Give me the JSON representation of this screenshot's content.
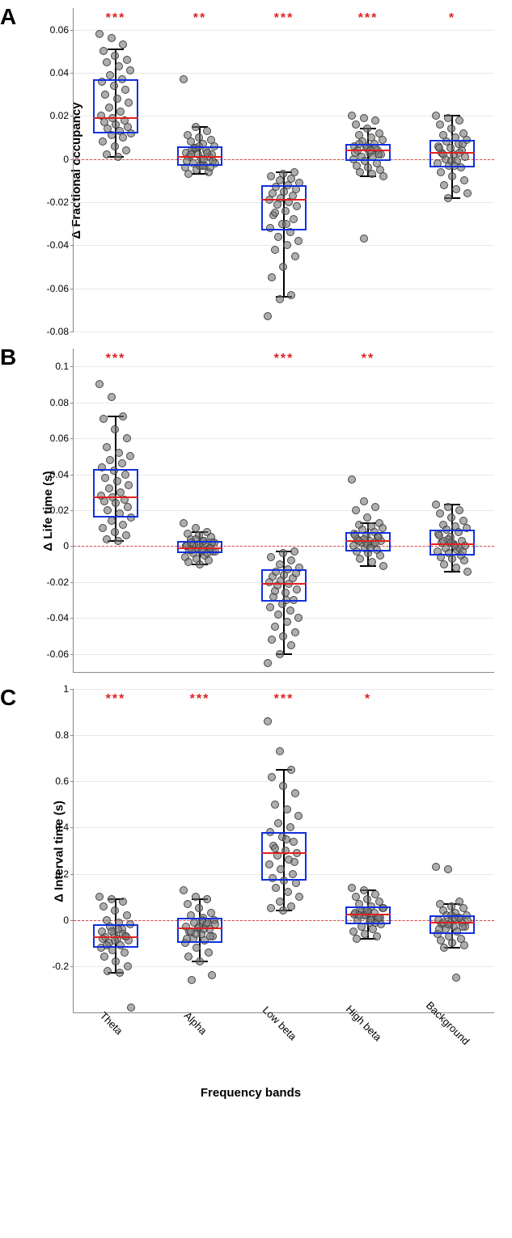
{
  "categories": [
    "Theta",
    "Alpha",
    "Low beta",
    "High beta",
    "Background"
  ],
  "xlabel": "Frequency bands",
  "colors": {
    "box_border": "#1030e0",
    "median": "#e02020",
    "whisker": "#000000",
    "point_fill": "rgba(120,120,120,0.6)",
    "point_border": "#444444",
    "grid": "#e8e8e8",
    "axis": "#888888",
    "zero_line": "#d44",
    "sig": "#e02020",
    "background": "#ffffff"
  },
  "fonts": {
    "panel_label_size": 28,
    "ylabel_size": 15,
    "xlabel_size": 15,
    "tick_size": 12,
    "xtick_size": 13,
    "sig_size": 16
  },
  "panels": [
    {
      "id": "A",
      "ylabel": "Δ Fractional occupancy",
      "ylim": [
        -0.08,
        0.07
      ],
      "yticks": [
        -0.08,
        -0.06,
        -0.04,
        -0.02,
        0,
        0.02,
        0.04,
        0.06
      ],
      "sig": [
        "***",
        "**",
        "***",
        "***",
        "*"
      ],
      "series": [
        {
          "q1": 0.012,
          "median": 0.019,
          "q3": 0.037,
          "lo": 0.001,
          "hi": 0.051,
          "points": [
            0.058,
            0.056,
            0.053,
            0.05,
            0.048,
            0.046,
            0.045,
            0.043,
            0.041,
            0.039,
            0.037,
            0.036,
            0.034,
            0.032,
            0.03,
            0.028,
            0.026,
            0.024,
            0.022,
            0.02,
            0.019,
            0.018,
            0.017,
            0.016,
            0.015,
            0.014,
            0.013,
            0.012,
            0.011,
            0.01,
            0.008,
            0.006,
            0.004,
            0.002,
            0.001
          ]
        },
        {
          "q1": -0.003,
          "median": 0.001,
          "q3": 0.006,
          "lo": -0.007,
          "hi": 0.015,
          "points": [
            0.037,
            0.015,
            0.013,
            0.011,
            0.01,
            0.009,
            0.008,
            0.007,
            0.006,
            0.005,
            0.004,
            0.003,
            0.002,
            0.001,
            0.001,
            0.0,
            -0.001,
            -0.002,
            -0.003,
            -0.004,
            -0.005,
            -0.006,
            -0.007,
            -0.003,
            0.002,
            0.004,
            0.0,
            -0.002,
            0.005,
            0.003,
            -0.001,
            0.006,
            -0.004,
            0.002,
            -0.003
          ]
        },
        {
          "q1": -0.033,
          "median": -0.019,
          "q3": -0.012,
          "lo": -0.064,
          "hi": -0.006,
          "points": [
            -0.073,
            -0.065,
            -0.063,
            -0.055,
            -0.05,
            -0.045,
            -0.042,
            -0.04,
            -0.038,
            -0.036,
            -0.034,
            -0.032,
            -0.03,
            -0.028,
            -0.026,
            -0.024,
            -0.022,
            -0.021,
            -0.02,
            -0.019,
            -0.018,
            -0.017,
            -0.016,
            -0.015,
            -0.014,
            -0.013,
            -0.012,
            -0.011,
            -0.01,
            -0.009,
            -0.008,
            -0.007,
            -0.006,
            -0.025,
            -0.03
          ]
        },
        {
          "q1": -0.001,
          "median": 0.004,
          "q3": 0.007,
          "lo": -0.008,
          "hi": 0.014,
          "points": [
            0.02,
            0.019,
            0.018,
            0.016,
            0.014,
            0.012,
            0.011,
            0.01,
            0.009,
            0.008,
            0.007,
            0.006,
            0.005,
            0.004,
            0.004,
            0.003,
            0.002,
            0.001,
            0.001,
            0.0,
            -0.001,
            -0.002,
            -0.003,
            -0.004,
            -0.005,
            -0.006,
            -0.007,
            -0.008,
            -0.037,
            0.005,
            0.003,
            0.006,
            0.002,
            0.007,
            0.004
          ]
        },
        {
          "q1": -0.004,
          "median": 0.003,
          "q3": 0.009,
          "lo": -0.018,
          "hi": 0.02,
          "points": [
            0.02,
            0.019,
            0.018,
            0.016,
            0.014,
            0.012,
            0.011,
            0.01,
            0.009,
            0.008,
            0.007,
            0.006,
            0.005,
            0.004,
            0.003,
            0.002,
            0.001,
            0.0,
            -0.001,
            -0.002,
            -0.003,
            -0.004,
            -0.006,
            -0.008,
            -0.01,
            -0.012,
            -0.014,
            -0.016,
            -0.018,
            0.003,
            0.005,
            -0.001,
            0.007,
            0.002,
            -0.003
          ]
        }
      ]
    },
    {
      "id": "B",
      "ylabel": "Δ Life time (s)",
      "ylim": [
        -0.07,
        0.11
      ],
      "yticks": [
        -0.06,
        -0.04,
        -0.02,
        0,
        0.02,
        0.04,
        0.06,
        0.08,
        0.1
      ],
      "sig": [
        "***",
        "",
        "***",
        "**",
        ""
      ],
      "series": [
        {
          "q1": 0.016,
          "median": 0.027,
          "q3": 0.043,
          "lo": 0.003,
          "hi": 0.072,
          "points": [
            0.09,
            0.083,
            0.072,
            0.071,
            0.065,
            0.06,
            0.055,
            0.052,
            0.05,
            0.048,
            0.046,
            0.044,
            0.042,
            0.04,
            0.038,
            0.036,
            0.034,
            0.032,
            0.03,
            0.028,
            0.027,
            0.026,
            0.025,
            0.024,
            0.022,
            0.02,
            0.018,
            0.016,
            0.014,
            0.012,
            0.01,
            0.008,
            0.006,
            0.004,
            0.003
          ]
        },
        {
          "q1": -0.004,
          "median": -0.001,
          "q3": 0.003,
          "lo": -0.01,
          "hi": 0.008,
          "points": [
            0.013,
            0.01,
            0.008,
            0.007,
            0.006,
            0.005,
            0.004,
            0.003,
            0.002,
            0.001,
            0.001,
            0.0,
            -0.001,
            -0.001,
            -0.002,
            -0.003,
            -0.003,
            -0.004,
            -0.005,
            -0.006,
            -0.007,
            -0.008,
            -0.009,
            -0.01,
            0.002,
            -0.002,
            0.003,
            -0.003,
            0.004,
            -0.004,
            0.0,
            0.001,
            -0.001,
            0.002,
            -0.002
          ]
        },
        {
          "q1": -0.031,
          "median": -0.021,
          "q3": -0.013,
          "lo": -0.06,
          "hi": -0.003,
          "points": [
            -0.065,
            -0.06,
            -0.055,
            -0.052,
            -0.05,
            -0.048,
            -0.045,
            -0.042,
            -0.04,
            -0.038,
            -0.036,
            -0.034,
            -0.032,
            -0.03,
            -0.028,
            -0.026,
            -0.024,
            -0.022,
            -0.021,
            -0.02,
            -0.019,
            -0.018,
            -0.017,
            -0.016,
            -0.015,
            -0.014,
            -0.013,
            -0.012,
            -0.01,
            -0.008,
            -0.006,
            -0.004,
            -0.003,
            -0.025,
            -0.03
          ]
        },
        {
          "q1": -0.003,
          "median": 0.003,
          "q3": 0.008,
          "lo": -0.011,
          "hi": 0.013,
          "points": [
            0.037,
            0.025,
            0.022,
            0.02,
            0.016,
            0.013,
            0.012,
            0.011,
            0.01,
            0.009,
            0.008,
            0.007,
            0.006,
            0.005,
            0.004,
            0.003,
            0.003,
            0.002,
            0.001,
            0.0,
            -0.001,
            -0.002,
            -0.003,
            -0.004,
            -0.005,
            -0.007,
            -0.009,
            -0.011,
            0.004,
            0.002,
            0.006,
            0.001,
            0.005,
            0.003,
            -0.001
          ]
        },
        {
          "q1": -0.005,
          "median": 0.001,
          "q3": 0.009,
          "lo": -0.014,
          "hi": 0.023,
          "points": [
            0.023,
            0.022,
            0.02,
            0.018,
            0.016,
            0.014,
            0.012,
            0.011,
            0.01,
            0.009,
            0.008,
            0.007,
            0.005,
            0.003,
            0.002,
            0.001,
            0.0,
            -0.001,
            -0.002,
            -0.003,
            -0.004,
            -0.005,
            -0.006,
            -0.007,
            -0.008,
            -0.01,
            -0.012,
            -0.014,
            0.004,
            -0.001,
            0.006,
            0.002,
            -0.003,
            0.003,
            0.0
          ]
        }
      ]
    },
    {
      "id": "C",
      "ylabel": "Δ Interval time (s)",
      "ylim": [
        -0.4,
        1.0
      ],
      "yticks": [
        -0.2,
        0,
        0.2,
        0.4,
        0.6,
        0.8,
        1.0
      ],
      "sig": [
        "***",
        "***",
        "***",
        "*",
        ""
      ],
      "series": [
        {
          "q1": -0.12,
          "median": -0.075,
          "q3": -0.02,
          "lo": -0.23,
          "hi": 0.09,
          "points": [
            0.1,
            0.09,
            0.08,
            0.06,
            0.04,
            0.02,
            0.0,
            -0.01,
            -0.02,
            -0.03,
            -0.04,
            -0.05,
            -0.06,
            -0.07,
            -0.075,
            -0.08,
            -0.09,
            -0.1,
            -0.11,
            -0.12,
            -0.13,
            -0.14,
            -0.16,
            -0.18,
            -0.2,
            -0.22,
            -0.23,
            -0.38,
            -0.05,
            -0.06,
            -0.08,
            -0.09,
            -0.07,
            -0.11,
            -0.04
          ]
        },
        {
          "q1": -0.1,
          "median": -0.035,
          "q3": 0.01,
          "lo": -0.18,
          "hi": 0.09,
          "points": [
            0.13,
            0.1,
            0.09,
            0.07,
            0.05,
            0.03,
            0.02,
            0.01,
            0.0,
            -0.01,
            -0.02,
            -0.03,
            -0.035,
            -0.04,
            -0.05,
            -0.06,
            -0.07,
            -0.08,
            -0.09,
            -0.1,
            -0.12,
            -0.14,
            -0.16,
            -0.18,
            -0.24,
            -0.26,
            -0.04,
            -0.02,
            -0.06,
            -0.01,
            -0.08,
            -0.03,
            -0.07,
            -0.05,
            0.0
          ]
        },
        {
          "q1": 0.17,
          "median": 0.29,
          "q3": 0.38,
          "lo": 0.04,
          "hi": 0.65,
          "points": [
            0.86,
            0.73,
            0.65,
            0.62,
            0.58,
            0.55,
            0.5,
            0.48,
            0.45,
            0.42,
            0.4,
            0.38,
            0.36,
            0.34,
            0.32,
            0.3,
            0.29,
            0.28,
            0.26,
            0.24,
            0.22,
            0.2,
            0.18,
            0.17,
            0.16,
            0.14,
            0.12,
            0.1,
            0.08,
            0.06,
            0.05,
            0.04,
            0.25,
            0.31,
            0.35
          ]
        },
        {
          "q1": -0.02,
          "median": 0.025,
          "q3": 0.06,
          "lo": -0.08,
          "hi": 0.13,
          "points": [
            0.14,
            0.13,
            0.11,
            0.1,
            0.09,
            0.08,
            0.07,
            0.06,
            0.05,
            0.04,
            0.03,
            0.025,
            0.02,
            0.01,
            0.0,
            -0.01,
            -0.02,
            -0.03,
            -0.04,
            -0.05,
            -0.06,
            -0.07,
            -0.08,
            0.03,
            0.01,
            0.04,
            0.0,
            0.05,
            0.02,
            -0.01,
            0.03,
            0.04,
            0.01,
            0.02,
            0.0
          ]
        },
        {
          "q1": -0.06,
          "median": -0.01,
          "q3": 0.02,
          "lo": -0.12,
          "hi": 0.07,
          "points": [
            0.23,
            0.22,
            0.08,
            0.07,
            0.06,
            0.05,
            0.04,
            0.03,
            0.02,
            0.02,
            0.01,
            0.0,
            -0.01,
            -0.01,
            -0.02,
            -0.03,
            -0.03,
            -0.04,
            -0.05,
            -0.06,
            -0.07,
            -0.08,
            -0.09,
            -0.1,
            -0.11,
            -0.12,
            -0.25,
            0.0,
            -0.02,
            0.01,
            -0.04,
            0.02,
            -0.03,
            -0.01,
            0.01
          ]
        }
      ]
    }
  ]
}
